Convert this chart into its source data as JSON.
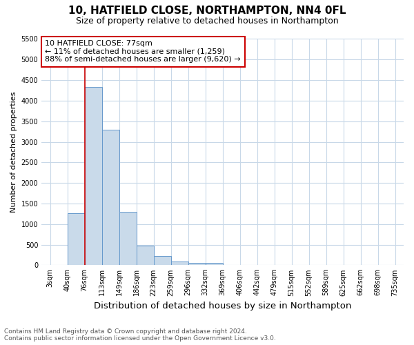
{
  "title": "10, HATFIELD CLOSE, NORTHAMPTON, NN4 0FL",
  "subtitle": "Size of property relative to detached houses in Northampton",
  "xlabel": "Distribution of detached houses by size in Northampton",
  "ylabel": "Number of detached properties",
  "bin_labels": [
    "3sqm",
    "40sqm",
    "76sqm",
    "113sqm",
    "149sqm",
    "186sqm",
    "223sqm",
    "259sqm",
    "296sqm",
    "332sqm",
    "369sqm",
    "406sqm",
    "442sqm",
    "479sqm",
    "515sqm",
    "552sqm",
    "589sqm",
    "625sqm",
    "662sqm",
    "698sqm",
    "735sqm"
  ],
  "bin_values": [
    0,
    1270,
    4330,
    3300,
    1300,
    480,
    230,
    90,
    55,
    50,
    0,
    0,
    0,
    0,
    0,
    0,
    0,
    0,
    0,
    0,
    0
  ],
  "bar_color": "#c9daea",
  "bar_edge_color": "#6699cc",
  "red_line_color": "#cc0000",
  "annotation_title": "10 HATFIELD CLOSE: 77sqm",
  "annotation_line1": "← 11% of detached houses are smaller (1,259)",
  "annotation_line2": "88% of semi-detached houses are larger (9,620) →",
  "annotation_box_color": "#ffffff",
  "annotation_box_edge_color": "#cc0000",
  "ylim": [
    0,
    5500
  ],
  "yticks": [
    0,
    500,
    1000,
    1500,
    2000,
    2500,
    3000,
    3500,
    4000,
    4500,
    5000,
    5500
  ],
  "footer_line1": "Contains HM Land Registry data © Crown copyright and database right 2024.",
  "footer_line2": "Contains public sector information licensed under the Open Government Licence v3.0.",
  "bg_color": "#ffffff",
  "grid_color": "#c8d8e8",
  "title_fontsize": 11,
  "subtitle_fontsize": 9,
  "xlabel_fontsize": 9.5,
  "ylabel_fontsize": 8,
  "tick_fontsize": 7,
  "footer_fontsize": 6.5,
  "annotation_fontsize": 8
}
